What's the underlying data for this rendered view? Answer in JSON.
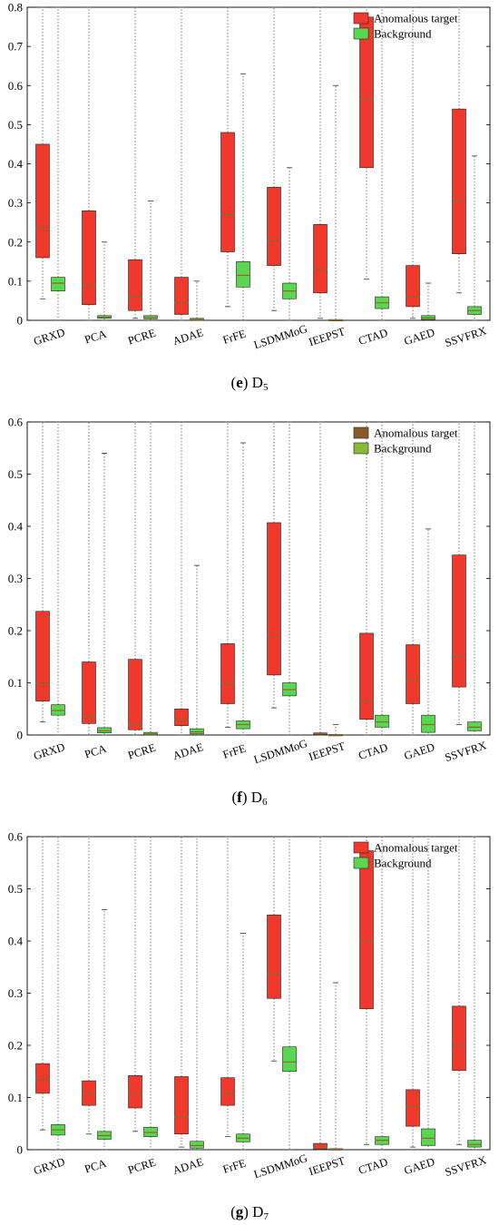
{
  "chart_data": [
    {
      "type": "box",
      "panel_letter": "e",
      "dataset": "D",
      "dataset_sub": "5",
      "ylim": [
        0,
        0.8
      ],
      "yticks": [
        "0",
        "0.1",
        "0.2",
        "0.3",
        "0.4",
        "0.5",
        "0.6",
        "0.7",
        "0.8"
      ],
      "ytick_values": [
        0,
        0.1,
        0.2,
        0.3,
        0.4,
        0.5,
        0.6,
        0.7,
        0.8
      ],
      "categories": [
        "GRXD",
        "PCA",
        "PCRE",
        "ADAE",
        "FrFE",
        "LSDMMoG",
        "IEEPST",
        "CTAD",
        "GAED",
        "SSVFRX"
      ],
      "legend": {
        "position": "top-right",
        "entries": [
          "Anomalous target",
          "Background"
        ]
      },
      "colors": {
        "target": "#f0392c",
        "background": "#5ad650",
        "median": "#8a6a2a"
      },
      "grid": false,
      "series": [
        {
          "name": "Anomalous target",
          "boxes": [
            {
              "q1": 0.16,
              "median": 0.235,
              "q3": 0.45,
              "whisker_low": 0.055,
              "whisker_high": 0.8
            },
            {
              "q1": 0.04,
              "median": 0.09,
              "q3": 0.28,
              "whisker_low": 0.0,
              "whisker_high": 0.8
            },
            {
              "q1": 0.025,
              "median": 0.06,
              "q3": 0.155,
              "whisker_low": 0.005,
              "whisker_high": 0.8
            },
            {
              "q1": 0.015,
              "median": 0.045,
              "q3": 0.11,
              "whisker_low": 0.0,
              "whisker_high": 0.8
            },
            {
              "q1": 0.175,
              "median": 0.27,
              "q3": 0.48,
              "whisker_low": 0.035,
              "whisker_high": 0.8
            },
            {
              "q1": 0.14,
              "median": 0.205,
              "q3": 0.34,
              "whisker_low": 0.025,
              "whisker_high": 0.8
            },
            {
              "q1": 0.07,
              "median": 0.13,
              "q3": 0.245,
              "whisker_low": 0.005,
              "whisker_high": 0.8
            },
            {
              "q1": 0.39,
              "median": 0.565,
              "q3": 0.775,
              "whisker_low": 0.105,
              "whisker_high": 0.8
            },
            {
              "q1": 0.035,
              "median": 0.06,
              "q3": 0.14,
              "whisker_low": 0.005,
              "whisker_high": 0.8
            },
            {
              "q1": 0.17,
              "median": 0.305,
              "q3": 0.54,
              "whisker_low": 0.07,
              "whisker_high": 0.8
            }
          ]
        },
        {
          "name": "Background",
          "boxes": [
            {
              "q1": 0.075,
              "median": 0.095,
              "q3": 0.11,
              "whisker_low": 0.0,
              "whisker_high": 0.8
            },
            {
              "q1": 0.005,
              "median": 0.008,
              "q3": 0.012,
              "whisker_low": 0.0,
              "whisker_high": 0.2
            },
            {
              "q1": 0.004,
              "median": 0.007,
              "q3": 0.012,
              "whisker_low": 0.0,
              "whisker_high": 0.305
            },
            {
              "q1": 0.0,
              "median": 0.002,
              "q3": 0.005,
              "whisker_low": 0.0,
              "whisker_high": 0.1
            },
            {
              "q1": 0.085,
              "median": 0.115,
              "q3": 0.15,
              "whisker_low": 0.0,
              "whisker_high": 0.63
            },
            {
              "q1": 0.055,
              "median": 0.075,
              "q3": 0.095,
              "whisker_low": 0.0,
              "whisker_high": 0.39
            },
            {
              "q1": 0.0,
              "median": 0.001,
              "q3": 0.002,
              "whisker_low": 0.0,
              "whisker_high": 0.6
            },
            {
              "q1": 0.03,
              "median": 0.045,
              "q3": 0.06,
              "whisker_low": 0.0,
              "whisker_high": 0.8
            },
            {
              "q1": 0.002,
              "median": 0.006,
              "q3": 0.012,
              "whisker_low": 0.0,
              "whisker_high": 0.095
            },
            {
              "q1": 0.015,
              "median": 0.025,
              "q3": 0.035,
              "whisker_low": 0.0,
              "whisker_high": 0.42
            }
          ]
        }
      ]
    },
    {
      "type": "box",
      "panel_letter": "f",
      "dataset": "D",
      "dataset_sub": "6",
      "ylim": [
        0,
        0.6
      ],
      "yticks": [
        "0",
        "0.1",
        "0.2",
        "0.3",
        "0.4",
        "0.5",
        "0.6"
      ],
      "ytick_values": [
        0,
        0.1,
        0.2,
        0.3,
        0.4,
        0.5,
        0.6
      ],
      "categories": [
        "GRXD",
        "PCA",
        "PCRE",
        "ADAE",
        "FrFE",
        "LSDMMoG",
        "IEEPST",
        "CTAD",
        "GAED",
        "SSVFRX"
      ],
      "legend": {
        "position": "top-right",
        "entries": [
          "Anomalous target",
          "Background"
        ]
      },
      "colors": {
        "target": "#f0392c",
        "background": "#5ad650",
        "median": "#8a6a2a",
        "legend_target": "#8a5a2a",
        "legend_background": "#8ab83a"
      },
      "grid": false,
      "series": [
        {
          "name": "Anomalous target",
          "boxes": [
            {
              "q1": 0.065,
              "median": 0.098,
              "q3": 0.237,
              "whisker_low": 0.025,
              "whisker_high": 0.6
            },
            {
              "q1": 0.022,
              "median": 0.035,
              "q3": 0.14,
              "whisker_low": 0.0,
              "whisker_high": 0.6
            },
            {
              "q1": 0.01,
              "median": 0.02,
              "q3": 0.145,
              "whisker_low": 0.0,
              "whisker_high": 0.6
            },
            {
              "q1": 0.018,
              "median": 0.03,
              "q3": 0.05,
              "whisker_low": 0.0,
              "whisker_high": 0.6
            },
            {
              "q1": 0.06,
              "median": 0.1,
              "q3": 0.175,
              "whisker_low": 0.015,
              "whisker_high": 0.6
            },
            {
              "q1": 0.115,
              "median": 0.19,
              "q3": 0.407,
              "whisker_low": 0.052,
              "whisker_high": 0.6
            },
            {
              "q1": 0.001,
              "median": 0.002,
              "q3": 0.004,
              "whisker_low": 0.0,
              "whisker_high": 0.6
            },
            {
              "q1": 0.03,
              "median": 0.065,
              "q3": 0.195,
              "whisker_low": 0.0,
              "whisker_high": 0.6
            },
            {
              "q1": 0.06,
              "median": 0.105,
              "q3": 0.173,
              "whisker_low": 0.0,
              "whisker_high": 0.6
            },
            {
              "q1": 0.092,
              "median": 0.15,
              "q3": 0.345,
              "whisker_low": 0.02,
              "whisker_high": 0.6
            }
          ]
        },
        {
          "name": "Background",
          "boxes": [
            {
              "q1": 0.038,
              "median": 0.047,
              "q3": 0.058,
              "whisker_low": 0.0,
              "whisker_high": 0.6
            },
            {
              "q1": 0.004,
              "median": 0.008,
              "q3": 0.014,
              "whisker_low": 0.0,
              "whisker_high": 0.54
            },
            {
              "q1": 0.0,
              "median": 0.002,
              "q3": 0.005,
              "whisker_low": 0.0,
              "whisker_high": 0.6
            },
            {
              "q1": 0.002,
              "median": 0.006,
              "q3": 0.012,
              "whisker_low": 0.0,
              "whisker_high": 0.325
            },
            {
              "q1": 0.012,
              "median": 0.02,
              "q3": 0.027,
              "whisker_low": 0.0,
              "whisker_high": 0.56
            },
            {
              "q1": 0.075,
              "median": 0.087,
              "q3": 0.1,
              "whisker_low": 0.0,
              "whisker_high": 0.6
            },
            {
              "q1": 0.0,
              "median": 0.0,
              "q3": 0.001,
              "whisker_low": 0.0,
              "whisker_high": 0.02
            },
            {
              "q1": 0.015,
              "median": 0.025,
              "q3": 0.038,
              "whisker_low": 0.0,
              "whisker_high": 0.6
            },
            {
              "q1": 0.005,
              "median": 0.02,
              "q3": 0.038,
              "whisker_low": 0.0,
              "whisker_high": 0.395
            },
            {
              "q1": 0.008,
              "median": 0.015,
              "q3": 0.025,
              "whisker_low": 0.0,
              "whisker_high": 0.6
            }
          ]
        }
      ]
    },
    {
      "type": "box",
      "panel_letter": "g",
      "dataset": "D",
      "dataset_sub": "7",
      "ylim": [
        0,
        0.6
      ],
      "yticks": [
        "0",
        "0.1",
        "0.2",
        "0.3",
        "0.4",
        "0.5",
        "0.6"
      ],
      "ytick_values": [
        0,
        0.1,
        0.2,
        0.3,
        0.4,
        0.5,
        0.6
      ],
      "categories": [
        "GRXD",
        "PCA",
        "PCRE",
        "ADAE",
        "FrFE",
        "LSDMMoG",
        "IEEPST",
        "CTAD",
        "GAED",
        "SSVFRX"
      ],
      "legend": {
        "position": "top-right",
        "entries": [
          "Anomalous target",
          "Background"
        ]
      },
      "colors": {
        "target": "#f0392c",
        "background": "#5ad650",
        "median": "#8a6a2a"
      },
      "grid": false,
      "series": [
        {
          "name": "Anomalous target",
          "boxes": [
            {
              "q1": 0.108,
              "median": 0.135,
              "q3": 0.165,
              "whisker_low": 0.038,
              "whisker_high": 0.6
            },
            {
              "q1": 0.085,
              "median": 0.108,
              "q3": 0.132,
              "whisker_low": 0.03,
              "whisker_high": 0.6
            },
            {
              "q1": 0.08,
              "median": 0.108,
              "q3": 0.142,
              "whisker_low": 0.035,
              "whisker_high": 0.6
            },
            {
              "q1": 0.03,
              "median": 0.062,
              "q3": 0.14,
              "whisker_low": 0.005,
              "whisker_high": 0.6
            },
            {
              "q1": 0.085,
              "median": 0.107,
              "q3": 0.138,
              "whisker_low": 0.025,
              "whisker_high": 0.6
            },
            {
              "q1": 0.29,
              "median": 0.338,
              "q3": 0.45,
              "whisker_low": 0.17,
              "whisker_high": 0.6
            },
            {
              "q1": 0.001,
              "median": 0.005,
              "q3": 0.012,
              "whisker_low": 0.0,
              "whisker_high": 0.6
            },
            {
              "q1": 0.27,
              "median": 0.4,
              "q3": 0.573,
              "whisker_low": 0.01,
              "whisker_high": 0.6
            },
            {
              "q1": 0.045,
              "median": 0.083,
              "q3": 0.115,
              "whisker_low": 0.005,
              "whisker_high": 0.6
            },
            {
              "q1": 0.152,
              "median": 0.2,
              "q3": 0.275,
              "whisker_low": 0.01,
              "whisker_high": 0.6
            }
          ]
        },
        {
          "name": "Background",
          "boxes": [
            {
              "q1": 0.028,
              "median": 0.038,
              "q3": 0.048,
              "whisker_low": 0.0,
              "whisker_high": 0.6
            },
            {
              "q1": 0.02,
              "median": 0.027,
              "q3": 0.035,
              "whisker_low": 0.0,
              "whisker_high": 0.46
            },
            {
              "q1": 0.025,
              "median": 0.033,
              "q3": 0.043,
              "whisker_low": 0.0,
              "whisker_high": 0.6
            },
            {
              "q1": 0.003,
              "median": 0.008,
              "q3": 0.016,
              "whisker_low": 0.0,
              "whisker_high": 0.6
            },
            {
              "q1": 0.015,
              "median": 0.022,
              "q3": 0.03,
              "whisker_low": 0.0,
              "whisker_high": 0.415
            },
            {
              "q1": 0.15,
              "median": 0.168,
              "q3": 0.197,
              "whisker_low": 0.0,
              "whisker_high": 0.6
            },
            {
              "q1": 0.0,
              "median": 0.001,
              "q3": 0.002,
              "whisker_low": 0.0,
              "whisker_high": 0.32
            },
            {
              "q1": 0.01,
              "median": 0.018,
              "q3": 0.025,
              "whisker_low": 0.0,
              "whisker_high": 0.6
            },
            {
              "q1": 0.008,
              "median": 0.022,
              "q3": 0.04,
              "whisker_low": 0.0,
              "whisker_high": 0.6
            },
            {
              "q1": 0.005,
              "median": 0.01,
              "q3": 0.018,
              "whisker_low": 0.0,
              "whisker_high": 0.6
            }
          ]
        }
      ]
    }
  ]
}
